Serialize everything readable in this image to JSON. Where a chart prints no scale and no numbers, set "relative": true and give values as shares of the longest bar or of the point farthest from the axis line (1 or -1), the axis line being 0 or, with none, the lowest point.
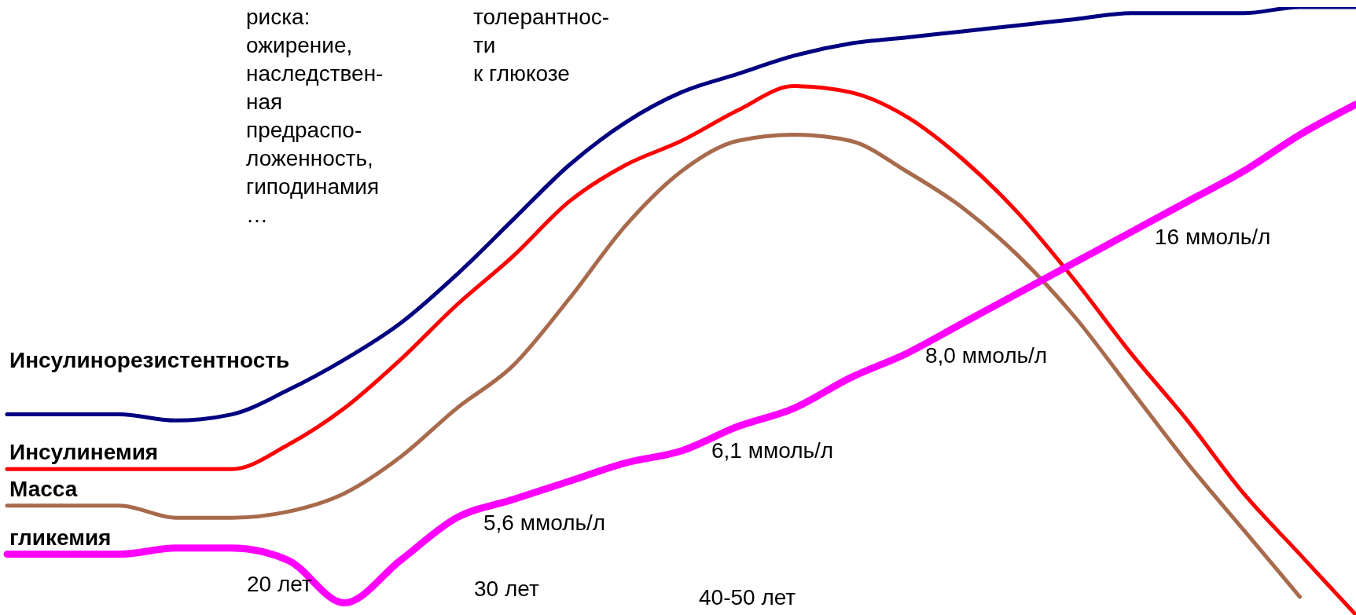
{
  "chart_data": {
    "type": "line",
    "relative": true,
    "grid": false,
    "legend": false,
    "marker": "none",
    "line_style": "solid",
    "categories": [
      null,
      null,
      null,
      null,
      null,
      null,
      null,
      null,
      null,
      null,
      null,
      null,
      null,
      null,
      null,
      null,
      null,
      null,
      null,
      null,
      null,
      null,
      null,
      null,
      null
    ],
    "series": [
      {
        "name": "Инсулинорезистентность",
        "color": "#000080",
        "values": [
          0.33,
          0.33,
          0.33,
          0.32,
          0.33,
          0.37,
          0.42,
          0.48,
          0.56,
          0.65,
          0.74,
          0.81,
          0.86,
          0.89,
          0.92,
          0.94,
          0.95,
          0.96,
          0.97,
          0.98,
          0.99,
          0.99,
          0.99,
          1.0,
          1.0
        ]
      },
      {
        "name": "Инсулинемия",
        "color": "#ff0000",
        "values": [
          0.24,
          0.24,
          0.24,
          0.24,
          0.24,
          0.28,
          0.34,
          0.42,
          0.51,
          0.59,
          0.68,
          0.74,
          0.78,
          0.83,
          0.87,
          0.86,
          0.82,
          0.75,
          0.66,
          0.55,
          0.43,
          0.32,
          0.2,
          0.1,
          0.0
        ]
      },
      {
        "name": "Масса",
        "color": "#a86a4c",
        "values": [
          0.18,
          0.18,
          0.18,
          0.16,
          0.16,
          0.17,
          0.2,
          0.26,
          0.34,
          0.41,
          0.52,
          0.64,
          0.73,
          0.78,
          0.79,
          0.78,
          0.73,
          0.67,
          0.59,
          0.49,
          0.37,
          0.25,
          0.14,
          0.03,
          null
        ]
      },
      {
        "name": "гликемия",
        "color": "#ff00ff",
        "values": [
          0.1,
          0.1,
          0.1,
          0.11,
          0.11,
          0.09,
          0.02,
          0.09,
          0.16,
          0.19,
          0.22,
          0.25,
          0.27,
          0.31,
          0.34,
          0.39,
          0.43,
          0.48,
          0.53,
          0.58,
          0.63,
          0.68,
          0.73,
          0.79,
          0.84
        ]
      }
    ],
    "annotations": [
      "риска: ожирение, наследствен-ная предраспо-ложенность, гиподинамия …",
      "толерантнос-ти к глюкозе",
      "5,6 ммоль/л",
      "6,1 ммоль/л",
      "8,0 ммоль/л",
      "16 ммоль/л",
      "20 лет",
      "30 лет",
      "40-50 лет"
    ]
  }
}
